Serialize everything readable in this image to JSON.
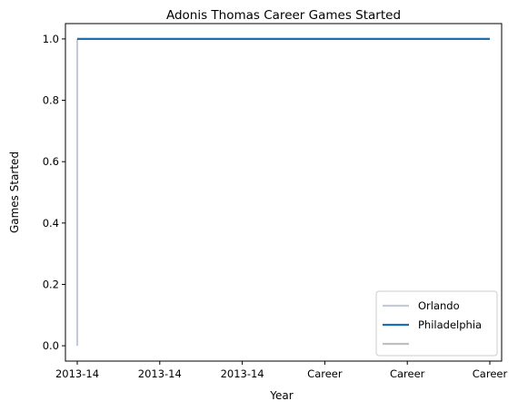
{
  "chart_data": {
    "type": "line",
    "title": "Adonis Thomas Career Games Started",
    "xlabel": "Year",
    "ylabel": "Games Started",
    "categories": [
      "2013-14",
      "2013-14",
      "2013-14",
      "Career",
      "Career",
      "Career"
    ],
    "ylim": [
      -0.05,
      1.05
    ],
    "yticks": [
      "0.0",
      "0.2",
      "0.4",
      "0.6",
      "0.8",
      "1.0"
    ],
    "grid": false,
    "legend_position": "bottom-right",
    "series": [
      {
        "name": "Orlando",
        "color": "#c3ccd6",
        "points": [
          {
            "x": 0,
            "y": 0
          },
          {
            "x": 0,
            "y": 1
          }
        ]
      },
      {
        "name": "Philadelphia",
        "color": "#1f6fae",
        "points": [
          {
            "x": 0,
            "y": 1
          },
          {
            "x": 5,
            "y": 1
          }
        ]
      },
      {
        "name": "",
        "color": "#c0c0c0",
        "points": []
      }
    ]
  }
}
